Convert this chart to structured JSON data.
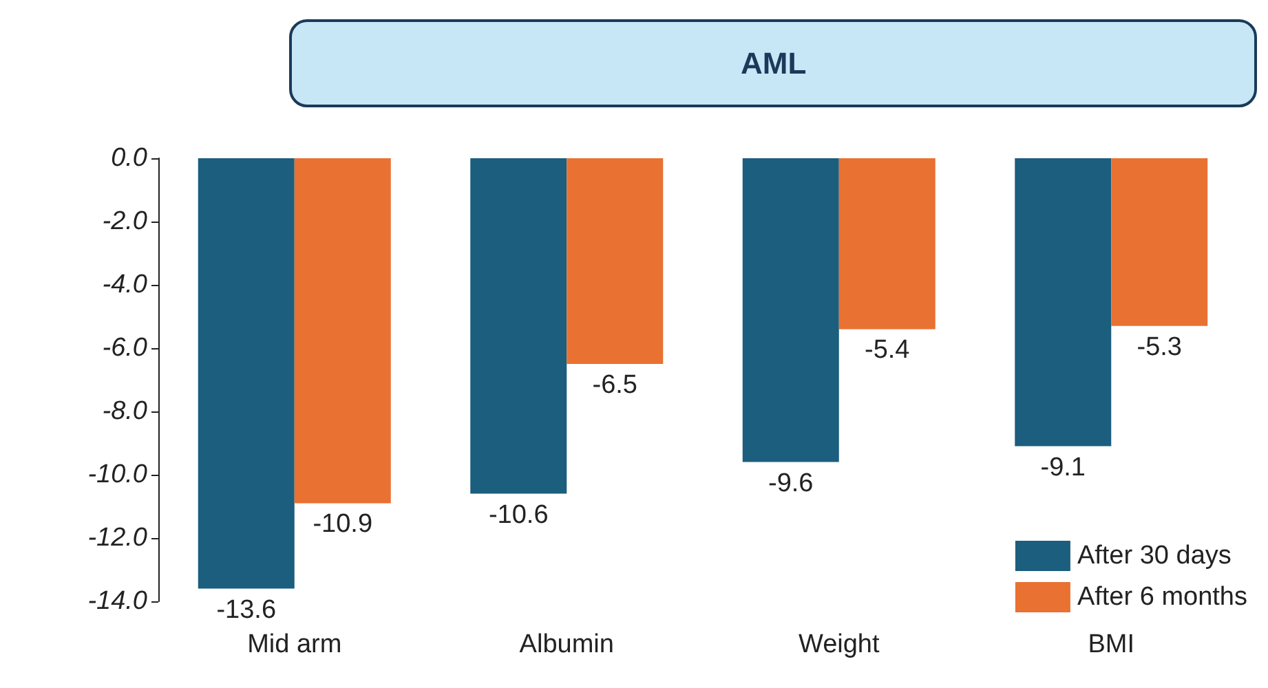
{
  "chart_data": {
    "type": "bar",
    "title": "AML",
    "categories": [
      "Mid arm",
      "Albumin",
      "Weight",
      "BMI"
    ],
    "series": [
      {
        "name": "After 30 days",
        "color": "#1b5e7e",
        "values": [
          -13.6,
          -10.6,
          -9.6,
          -9.1
        ]
      },
      {
        "name": "After 6 months",
        "color": "#e97132",
        "values": [
          -10.9,
          -6.5,
          -5.4,
          -5.3
        ]
      }
    ],
    "ylim": [
      -14,
      0
    ],
    "yticks": [
      {
        "value": 0,
        "label": "0.0"
      },
      {
        "value": -2,
        "label": "-2.0"
      },
      {
        "value": -4,
        "label": "-4.0"
      },
      {
        "value": -6,
        "label": "-6.0"
      },
      {
        "value": -8,
        "label": "-8.0"
      },
      {
        "value": -10,
        "label": "-10.0"
      },
      {
        "value": -12,
        "label": "-12.0"
      },
      {
        "value": -14,
        "label": "-14.0"
      }
    ],
    "grid": false,
    "legend": "bottom right",
    "data_labels": true
  }
}
